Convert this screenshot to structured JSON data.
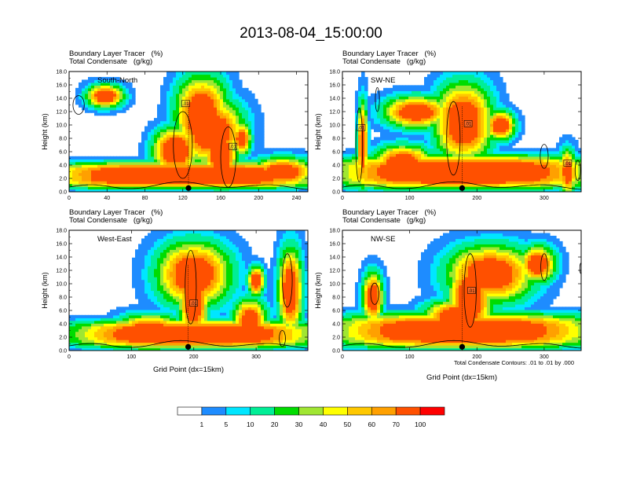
{
  "main_title": "2013-08-04_15:00:00",
  "legend_note": "Total Condensate Contours: .01 to .01 by .000",
  "colorbar": {
    "labels": [
      "1",
      "5",
      "10",
      "20",
      "30",
      "40",
      "50",
      "60",
      "70",
      "100"
    ],
    "colors": [
      "#ffffff",
      "#1e8cff",
      "#00e6ff",
      "#00ee96",
      "#00dc00",
      "#a0e632",
      "#ffff00",
      "#ffc800",
      "#ffa000",
      "#ff5000",
      "#ff0000"
    ]
  },
  "chart_data": [
    {
      "type": "heatmap",
      "label": "South-North",
      "title_line1": "Boundary Layer Tracer   (%)",
      "title_line2": "Total Condensate   (g/kg)",
      "ylabel": "Height (km)",
      "xlabel": "",
      "xlim": [
        0,
        252
      ],
      "ylim": [
        0,
        18
      ],
      "xticks": [
        0,
        40,
        80,
        120,
        160,
        200,
        240
      ],
      "yticks": [
        "0.0",
        "2.0",
        "4.0",
        "6.0",
        "8.0",
        "10.0",
        "12.0",
        "14.0",
        "16.0",
        "18.0"
      ],
      "contour_labels": [
        ".01",
        ".01"
      ],
      "marker_x": 126
    },
    {
      "type": "heatmap",
      "label": "SW-NE",
      "title_line1": "Boundary Layer Tracer   (%)",
      "title_line2": "Total Condensate   (g/kg)",
      "ylabel": "Height (km)",
      "xlabel": "",
      "xlim": [
        0,
        355
      ],
      "ylim": [
        0,
        18
      ],
      "xticks": [
        0,
        100,
        200,
        300
      ],
      "yticks": [
        "0.0",
        "2.0",
        "4.0",
        "6.0",
        "8.0",
        "10.0",
        "12.0",
        "14.0",
        "16.0",
        "18.0"
      ],
      "contour_labels": [
        ".01",
        ".01",
        ".01"
      ],
      "marker_x": 178
    },
    {
      "type": "heatmap",
      "label": "West-East",
      "title_line1": "Boundary Layer Tracer   (%)",
      "title_line2": "Total Condensate   (g/kg)",
      "ylabel": "Height (km)",
      "xlabel": "Grid Point (dx=15km)",
      "xlim": [
        0,
        383
      ],
      "ylim": [
        0,
        18
      ],
      "xticks": [
        0,
        100,
        200,
        300
      ],
      "yticks": [
        "0.0",
        "2.0",
        "4.0",
        "6.0",
        "8.0",
        "10.0",
        "12.0",
        "14.0",
        "16.0",
        "18.0"
      ],
      "contour_labels": [
        ".01"
      ],
      "marker_x": 191
    },
    {
      "type": "heatmap",
      "label": "NW-SE",
      "title_line1": "Boundary Layer Tracer   (%)",
      "title_line2": "Total Condensate   (g/kg)",
      "ylabel": "Height (km)",
      "xlabel": "Grid Point (dx=15km)",
      "xlim": [
        0,
        355
      ],
      "ylim": [
        0,
        18
      ],
      "xticks": [
        0,
        100,
        200,
        300
      ],
      "yticks": [
        "0.0",
        "2.0",
        "4.0",
        "6.0",
        "8.0",
        "10.0",
        "12.0",
        "14.0",
        "16.0",
        "18.0"
      ],
      "contour_labels": [
        ".01"
      ],
      "marker_x": 178
    }
  ]
}
